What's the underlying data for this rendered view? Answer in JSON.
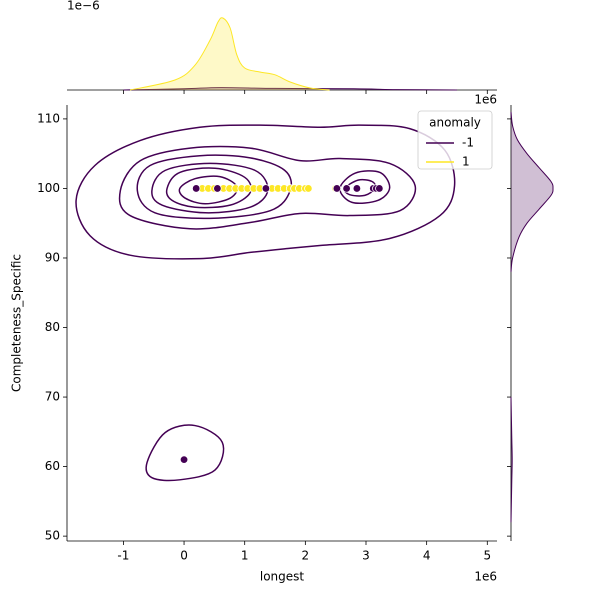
{
  "chart_data": {
    "type": "scatter",
    "x_label": "longest",
    "y_label": "Completeness_Specific",
    "x_offset_label": "1e6",
    "xlim": [
      -1.93,
      5.16
    ],
    "xticks": [
      -1,
      0,
      1,
      2,
      3,
      4,
      5
    ],
    "ylim": [
      49.3,
      112
    ],
    "yticks": [
      50,
      60,
      70,
      80,
      90,
      100,
      110
    ],
    "legend_title": "anomaly",
    "legend_position": "upper right",
    "series": [
      {
        "name": "-1",
        "color": "#440154",
        "x": [
          0.0,
          0.2,
          0.55,
          1.35,
          2.52,
          2.68,
          2.85,
          3.12,
          3.17,
          3.22
        ],
        "values": [
          61,
          100,
          100,
          100,
          100,
          100,
          100,
          100,
          100,
          100
        ]
      },
      {
        "name": "1",
        "color": "#fde725",
        "x": [
          0.3,
          0.4,
          0.5,
          0.65,
          0.75,
          0.85,
          0.95,
          1.05,
          1.15,
          1.25,
          1.45,
          1.55,
          1.65,
          1.75,
          1.82,
          1.9,
          2.0,
          2.05,
          2.5
        ],
        "values": [
          100,
          100,
          100,
          100,
          100,
          100,
          100,
          100,
          100,
          100,
          100,
          100,
          100,
          100,
          100,
          100,
          100,
          100,
          100
        ]
      }
    ],
    "contours": {
      "color": "#440154",
      "levels": [
        {
          "x": [
            -1.78,
            -1.47,
            -0.72,
            0.26,
            1.25,
            2.24,
            2.9,
            3.72,
            4.3,
            4.46,
            4.22,
            3.39,
            2.24,
            1.75,
            1.09,
            0.26,
            -0.89,
            -1.55
          ],
          "y": [
            98.3,
            103.3,
            106.9,
            108.8,
            109.1,
            108.8,
            109.1,
            108.6,
            105.5,
            100.4,
            96.1,
            92.8,
            91.8,
            91.4,
            90.8,
            89.9,
            90.4,
            93.2
          ]
        },
        {
          "x": [
            -1.05,
            -0.72,
            0.1,
            1.09,
            1.91,
            2.57,
            3.39,
            3.81,
            3.56,
            2.73,
            1.91,
            1.09,
            0.1,
            -0.89
          ],
          "y": [
            99.7,
            104.0,
            105.8,
            105.8,
            104.0,
            104.3,
            103.6,
            100.4,
            96.8,
            96.1,
            96.4,
            95.1,
            94.2,
            96.1
          ]
        },
        {
          "x": [
            -0.77,
            -0.56,
            0.26,
            1.09,
            1.66,
            1.75,
            1.42,
            0.43,
            -0.48
          ],
          "y": [
            99.7,
            103.3,
            104.7,
            104.4,
            102.6,
            99.7,
            96.8,
            95.7,
            96.5
          ]
        },
        {
          "x": [
            -0.53,
            -0.31,
            0.43,
            1.17,
            1.38,
            1.09,
            0.35,
            -0.36
          ],
          "y": [
            99.7,
            102.6,
            103.6,
            102.6,
            99.7,
            97.3,
            96.5,
            97.6
          ]
        },
        {
          "x": [
            -0.28,
            -0.07,
            0.51,
            1.0,
            1.09,
            0.76,
            0.18,
            -0.2
          ],
          "y": [
            100,
            102.3,
            102.9,
            101.6,
            99.4,
            97.6,
            97.3,
            98.3
          ]
        },
        {
          "x": [
            -0.07,
            0.18,
            0.59,
            0.87,
            0.76,
            0.35,
            0.02
          ],
          "y": [
            100,
            101.4,
            101.7,
            100.3,
            98.6,
            97.8,
            98.6
          ]
        },
        {
          "x": [
            2.57,
            2.82,
            3.23,
            3.39,
            3.2,
            2.77
          ],
          "y": [
            100,
            102.2,
            102.3,
            100.1,
            98.3,
            98.0
          ]
        },
        {
          "x": [
            2.65,
            2.87,
            3.1,
            3.15,
            2.98,
            2.73
          ],
          "y": [
            100,
            101.2,
            101.0,
            100,
            99.0,
            99.1
          ]
        },
        {
          "x": [
            -0.61,
            -0.31,
            0.18,
            0.63,
            0.51,
            -0.07,
            -0.53
          ],
          "y": [
            60.6,
            64.9,
            65.9,
            63.5,
            59.5,
            58.1,
            58.4
          ]
        }
      ]
    },
    "marginal_top": {
      "x_offset_label": "1e6",
      "y_offset_label": "1e−6",
      "ylim": [
        0,
        1
      ],
      "curves": [
        {
          "color": "#440154",
          "x": [
            -1.0,
            0.0,
            0.6,
            1.5,
            2.8,
            3.5,
            4.5
          ],
          "y": [
            0,
            0.015,
            0.03,
            0.02,
            0.015,
            0.005,
            0
          ]
        },
        {
          "color": "#fde725",
          "x": [
            -0.89,
            -0.15,
            0.18,
            0.43,
            0.56,
            0.64,
            0.76,
            0.87,
            1.0,
            1.25,
            1.5,
            1.75,
            2.08,
            2.4
          ],
          "y": [
            0,
            0.125,
            0.31,
            0.625,
            0.85,
            0.9,
            0.775,
            0.44,
            0.275,
            0.225,
            0.19,
            0.1,
            0.025,
            0
          ]
        }
      ]
    },
    "marginal_right": {
      "xlim": [
        0,
        1
      ],
      "curves": [
        {
          "color": "#440154",
          "y": [
            88,
            90,
            93,
            95,
            97,
            99,
            100,
            101,
            103,
            105,
            107,
            109,
            111
          ],
          "x": [
            0,
            0.02,
            0.1,
            0.2,
            0.35,
            0.5,
            0.525,
            0.5,
            0.35,
            0.2,
            0.08,
            0.02,
            0
          ]
        },
        {
          "color": "#440154",
          "y": [
            70,
            64,
            61,
            58,
            52
          ],
          "x": [
            0,
            0.01,
            0.015,
            0.01,
            0
          ]
        }
      ]
    }
  }
}
